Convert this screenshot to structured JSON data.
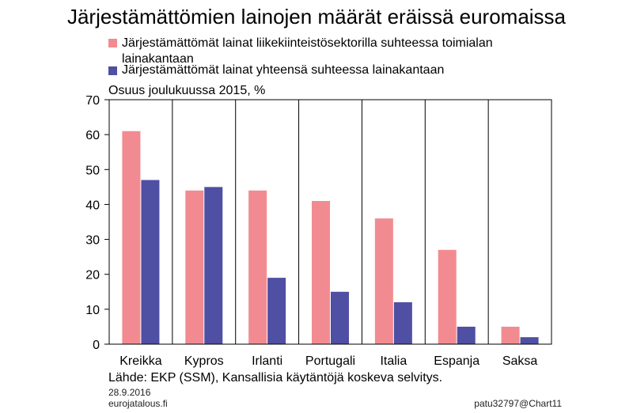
{
  "chart_data": {
    "type": "bar",
    "title": "Järjestämättömien lainojen määrät eräissä euromaissa",
    "ylabel": "Osuus joulukuussa 2015, %",
    "categories": [
      "Kreikka",
      "Kypros",
      "Irlanti",
      "Portugali",
      "Italia",
      "Espanja",
      "Saksa"
    ],
    "series": [
      {
        "name": "Järjestämättömät lainat liikekiinteistösektorilla suhteessa toimialan lainakantaan",
        "values": [
          61,
          44,
          44,
          41,
          36,
          27,
          5
        ],
        "color": "#f28b91"
      },
      {
        "name": "Järjestämättömät lainat yhteensä suhteessa lainakantaan",
        "values": [
          47,
          45,
          19,
          15,
          12,
          5,
          2
        ],
        "color": "#4f4fa3"
      }
    ],
    "ylim": [
      0,
      70
    ],
    "yticks": [
      0,
      10,
      20,
      30,
      40,
      50,
      60,
      70
    ],
    "grid": "vertical-separators",
    "legend_position": "top"
  },
  "source": "Lähde: EKP (SSM), Kansallisia käytäntöjä koskeva selvitys.",
  "footer": {
    "date": "28.9.2016",
    "site": "eurojatalous.fi",
    "id": "patu32797@Chart11"
  }
}
